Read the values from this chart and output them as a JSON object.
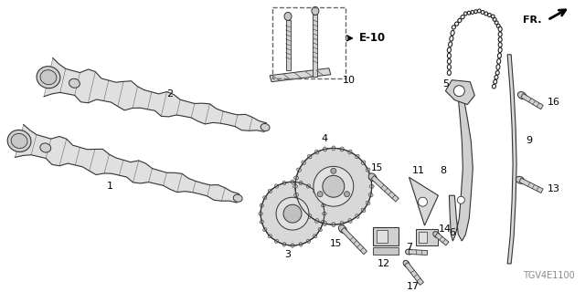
{
  "bg_color": "#ffffff",
  "diagram_code": "TGV4E1100",
  "fr_label": "FR.",
  "e10_label": "E-10",
  "line_color": "#333333",
  "text_color": "#000000",
  "fig_width": 6.4,
  "fig_height": 3.2,
  "dpi": 100
}
